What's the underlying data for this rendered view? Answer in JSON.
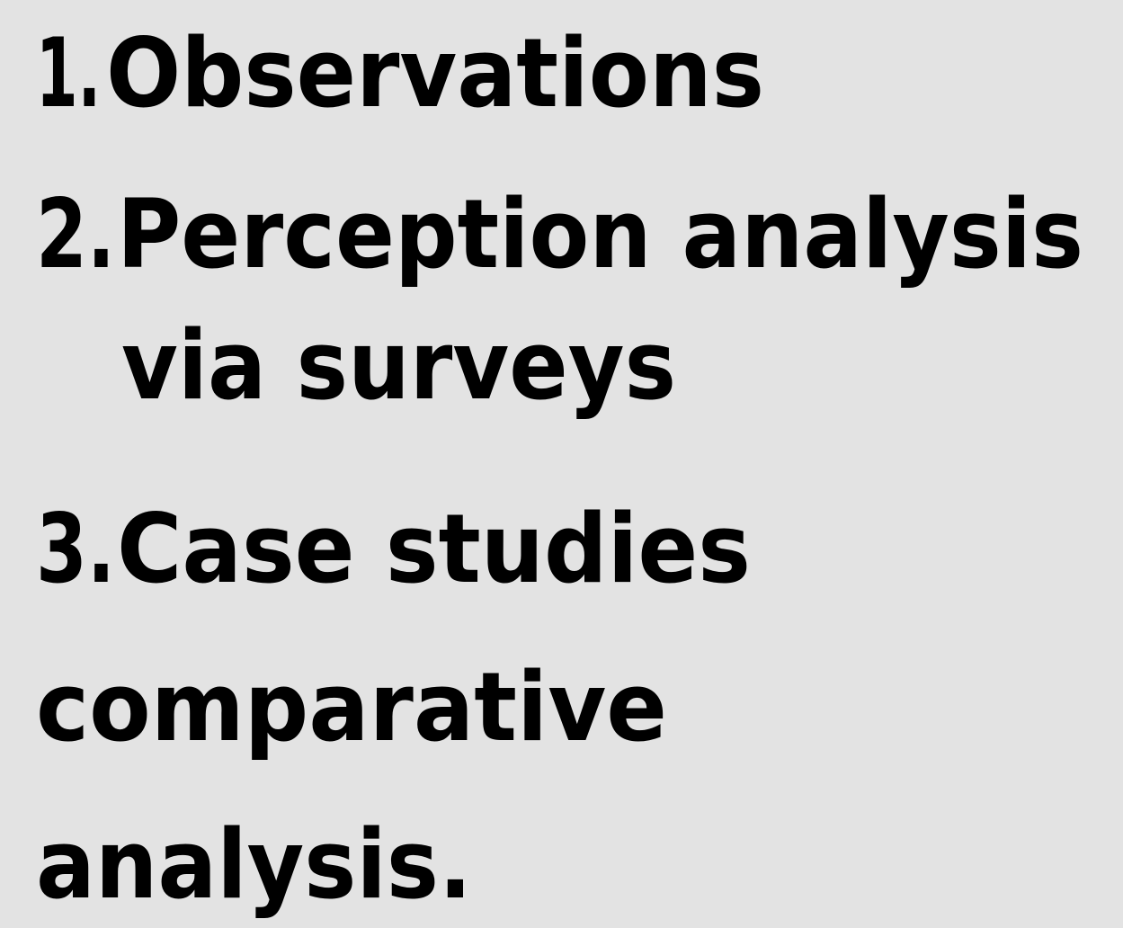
{
  "items": [
    {
      "number": "1.",
      "lines": [
        "Observations"
      ]
    },
    {
      "number": "2.",
      "lines": [
        "Perception analysis",
        "via surveys"
      ]
    },
    {
      "number": "3.",
      "lines": [
        "Case studies"
      ]
    }
  ],
  "continuation": [
    "comparative",
    "analysis."
  ]
}
